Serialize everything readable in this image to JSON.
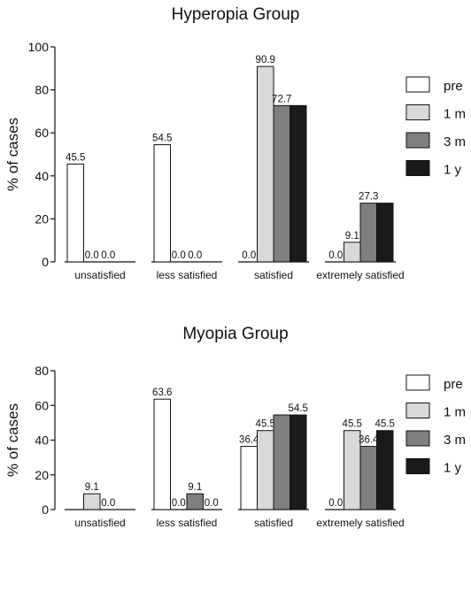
{
  "chart_data": [
    {
      "type": "bar",
      "title": "Hyperopia Group",
      "ylabel": "% of cases",
      "xlabel": "",
      "ylim": [
        0,
        100
      ],
      "yticks": [
        0,
        20,
        40,
        60,
        80,
        100
      ],
      "categories": [
        "unsatisfied",
        "less satisfied",
        "satisfied",
        "extremely satisfied"
      ],
      "legend_position": "right",
      "grid": false,
      "series": [
        {
          "name": "pre",
          "color": "#ffffff",
          "values": [
            45.5,
            54.5,
            0.0,
            0.0
          ],
          "labels": [
            "45.5",
            "54.5",
            "0.0",
            "0.0"
          ]
        },
        {
          "name": "1 m",
          "color": "#d9d9d9",
          "values": [
            0.0,
            0.0,
            90.9,
            9.1
          ],
          "labels": [
            "0.0",
            "0.0",
            "90.9",
            "9.1"
          ]
        },
        {
          "name": "3 m",
          "color": "#7f7f7f",
          "values": [
            0.0,
            0.0,
            72.7,
            27.3
          ],
          "labels": [
            "0.0",
            "0.0",
            "72.7",
            "27.3"
          ]
        },
        {
          "name": "1 y",
          "color": "#1a1a1a",
          "values": [
            0.0,
            0.0,
            72.7,
            27.3
          ],
          "labels": [
            "",
            "",
            "",
            ""
          ]
        }
      ]
    },
    {
      "type": "bar",
      "title": "Myopia Group",
      "ylabel": "% of cases",
      "xlabel": "",
      "ylim": [
        0,
        80
      ],
      "yticks": [
        0,
        20,
        40,
        60,
        80
      ],
      "categories": [
        "unsatisfied",
        "less satisfied",
        "satisfied",
        "extremely satisfied"
      ],
      "legend_position": "right",
      "grid": false,
      "series": [
        {
          "name": "pre",
          "color": "#ffffff",
          "values": [
            0.0,
            63.6,
            36.4,
            0.0
          ],
          "labels": [
            "",
            "63.6",
            "36.4",
            "0.0"
          ]
        },
        {
          "name": "1 m",
          "color": "#d9d9d9",
          "values": [
            9.1,
            0.0,
            45.5,
            45.5
          ],
          "labels": [
            "9.1",
            "0.0",
            "45.5",
            "45.5"
          ]
        },
        {
          "name": "3 m",
          "color": "#7f7f7f",
          "values": [
            0.0,
            9.1,
            54.5,
            36.4
          ],
          "labels": [
            "0.0",
            "9.1",
            "",
            "36.4"
          ]
        },
        {
          "name": "1 y",
          "color": "#1a1a1a",
          "values": [
            0.0,
            0.0,
            54.5,
            45.5
          ],
          "labels": [
            "",
            "0.0",
            "54.5",
            "45.5"
          ]
        }
      ]
    }
  ]
}
